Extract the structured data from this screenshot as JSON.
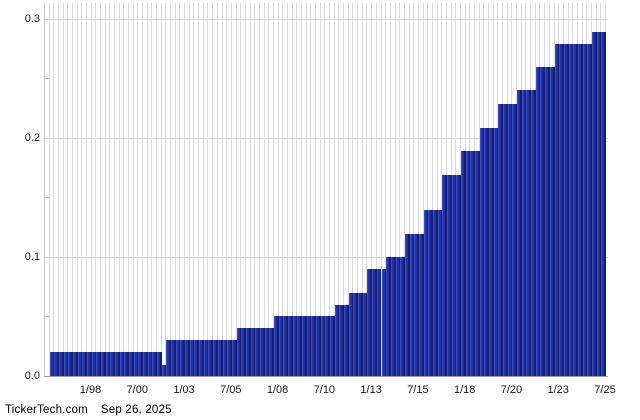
{
  "chart_data": {
    "type": "bar",
    "title": "",
    "xlabel": "",
    "ylabel": "",
    "bar_period": "quarterly",
    "ylim": [
      0,
      0.3
    ],
    "y_tick_values": [
      0.0,
      0.1,
      0.2,
      0.3
    ],
    "y_tick_labels": [
      "0.0",
      "0.1",
      "0.2",
      "0.3"
    ],
    "y_minor_tick_values": [
      0.05,
      0.15,
      0.25
    ],
    "x_tick_labels": [
      "1/98",
      "7/00",
      "1/03",
      "7/05",
      "1/08",
      "7/10",
      "1/13",
      "7/15",
      "1/18",
      "7/20",
      "1/23",
      "7/25"
    ],
    "grid": "vertical line per quarterly bar; horizontal lines at 0.1, 0.2, 0.3",
    "legend": "none",
    "steps": [
      {
        "value": 0.02,
        "count": 24
      },
      {
        "value": 0.009,
        "count": 1
      },
      {
        "value": 0.03,
        "count": 15
      },
      {
        "value": 0.04,
        "count": 8
      },
      {
        "value": 0.05,
        "count": 13
      },
      {
        "value": 0.06,
        "count": 3
      },
      {
        "value": 0.07,
        "count": 4
      },
      {
        "value": 0.09,
        "count": 4
      },
      {
        "value": 0.1,
        "count": 4
      },
      {
        "value": 0.119,
        "count": 4
      },
      {
        "value": 0.139,
        "count": 4
      },
      {
        "value": 0.169,
        "count": 4
      },
      {
        "value": 0.189,
        "count": 4
      },
      {
        "value": 0.208,
        "count": 4
      },
      {
        "value": 0.228,
        "count": 4
      },
      {
        "value": 0.24,
        "count": 4
      },
      {
        "value": 0.259,
        "count": 4
      },
      {
        "value": 0.279,
        "count": 8
      },
      {
        "value": 0.289,
        "count": 3
      }
    ]
  },
  "footer": {
    "source": "TickerTech.com",
    "date": "Sep 26, 2025"
  },
  "colors": {
    "bar_main": "#2132a6",
    "bar_highlight": "#3d4dbb",
    "bar_shadow": "#131f73",
    "gridline": "#d9d9d9",
    "axis_line": "#9b9b9b",
    "text": "#1a1a1a",
    "background": "#ffffff"
  }
}
